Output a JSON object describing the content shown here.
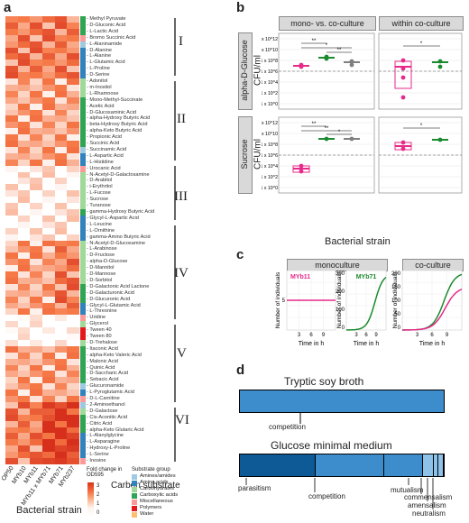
{
  "panel_a": {
    "label": "a",
    "columns": [
      "OP50",
      "MYb10",
      "MYb11",
      "MYb11 x MYb71",
      "MYb71",
      "MYb237"
    ],
    "xlabel": "Bacterial strain",
    "ylabel": "Carbon substrate",
    "clusters": [
      "I",
      "II",
      "III",
      "IV",
      "V",
      "VI"
    ],
    "rows": [
      {
        "name": "Methyl Pyruvate",
        "group": "Carboxylic acids"
      },
      {
        "name": "D-Gluconic Acid",
        "group": "Carboxylic acids"
      },
      {
        "name": "L-Lactic Acid",
        "group": "Carboxylic acids"
      },
      {
        "name": "Bromo Succinic Acid",
        "group": "Miscellaneous"
      },
      {
        "name": "L-Alaninamide",
        "group": "Amines/amides"
      },
      {
        "name": "D-Alanine",
        "group": "Amino acids"
      },
      {
        "name": "L-Alanine",
        "group": "Amino acids"
      },
      {
        "name": "L-Glutamic Acid",
        "group": "Amino acids"
      },
      {
        "name": "L-Proline",
        "group": "Amino acids"
      },
      {
        "name": "D-Serine",
        "group": "Amino acids"
      },
      {
        "name": "Adonitol",
        "group": "Carbohydrates"
      },
      {
        "name": "m-Inositol",
        "group": "Carbohydrates"
      },
      {
        "name": "L-Rhamnose",
        "group": "Carbohydrates"
      },
      {
        "name": "Mono-Methyl-Succinate",
        "group": "Carboxylic acids"
      },
      {
        "name": "Acetic Acid",
        "group": "Carboxylic acids"
      },
      {
        "name": "D-Glucosaminic Acid",
        "group": "Carboxylic acids"
      },
      {
        "name": "alpha-Hydroxy Butyric Acid",
        "group": "Carboxylic acids"
      },
      {
        "name": "beta-Hydroxy Butyric Acid",
        "group": "Carboxylic acids"
      },
      {
        "name": "alpha-Keto Butyric Acid",
        "group": "Carboxylic acids"
      },
      {
        "name": "Propionic Acid",
        "group": "Carboxylic acids"
      },
      {
        "name": "Succinic Acid",
        "group": "Carboxylic acids"
      },
      {
        "name": "Succinamic Acid",
        "group": "Amines/amides"
      },
      {
        "name": "L-Aspartic Acid",
        "group": "Amino acids"
      },
      {
        "name": "L-Histidine",
        "group": "Amino acids"
      },
      {
        "name": "Urocanic Acid",
        "group": "Miscellaneous"
      },
      {
        "name": "N-Acetyl-D-Galactosamine",
        "group": "Carbohydrates"
      },
      {
        "name": "D-Arabitol",
        "group": "Carbohydrates"
      },
      {
        "name": "i-Erythritol",
        "group": "Carbohydrates"
      },
      {
        "name": "L-Fucose",
        "group": "Carbohydrates"
      },
      {
        "name": "Sucrose",
        "group": "Carbohydrates"
      },
      {
        "name": "Turanose",
        "group": "Carbohydrates"
      },
      {
        "name": "gamma-Hydroxy Butyric Acid",
        "group": "Carboxylic acids"
      },
      {
        "name": "Glycyl-L-Aspartic Acid",
        "group": "Amino acids"
      },
      {
        "name": "L-Leucine",
        "group": "Amino acids"
      },
      {
        "name": "L-Ornithine",
        "group": "Amino acids"
      },
      {
        "name": "gamma-Amino Butyric Acid",
        "group": "Amino acids"
      },
      {
        "name": "N-Acetyl-D-Glucosamine",
        "group": "Carbohydrates"
      },
      {
        "name": "L-Arabinose",
        "group": "Carbohydrates"
      },
      {
        "name": "D-Fructose",
        "group": "Carbohydrates"
      },
      {
        "name": "alpha-D-Glucose",
        "group": "Carbohydrates"
      },
      {
        "name": "D-Mannitol",
        "group": "Carbohydrates"
      },
      {
        "name": "D-Mannose",
        "group": "Carbohydrates"
      },
      {
        "name": "D-Sorbitol",
        "group": "Carbohydrates"
      },
      {
        "name": "D-Galactonic Acid Lactone",
        "group": "Carboxylic acids"
      },
      {
        "name": "D-Galacturonic Acid",
        "group": "Carboxylic acids"
      },
      {
        "name": "D-Glucuronic Acid",
        "group": "Carboxylic acids"
      },
      {
        "name": "Glycyl-L-Glutamic Acid",
        "group": "Amino acids"
      },
      {
        "name": "L-Threonine",
        "group": "Amino acids"
      },
      {
        "name": "Uridine",
        "group": "Miscellaneous"
      },
      {
        "name": "Glycerol",
        "group": "Carbohydrates"
      },
      {
        "name": "Tween 40",
        "group": "Polymers"
      },
      {
        "name": "Tween 80",
        "group": "Polymers"
      },
      {
        "name": "D-Trehalose",
        "group": "Carbohydrates"
      },
      {
        "name": "Itaconic Acid",
        "group": "Carboxylic acids"
      },
      {
        "name": "alpha-Keto Valeric Acid",
        "group": "Carboxylic acids"
      },
      {
        "name": "Malonic Acid",
        "group": "Carboxylic acids"
      },
      {
        "name": "Quinic Acid",
        "group": "Carboxylic acids"
      },
      {
        "name": "D-Saccharic Acid",
        "group": "Carboxylic acids"
      },
      {
        "name": "Sebacic Acid",
        "group": "Carboxylic acids"
      },
      {
        "name": "Glucuronamide",
        "group": "Amines/amides"
      },
      {
        "name": "L-Pyroglutamic Acid",
        "group": "Amino acids"
      },
      {
        "name": "D-L-Carnitine",
        "group": "Miscellaneous"
      },
      {
        "name": "2-Aminoethanol",
        "group": "Amines/amides"
      },
      {
        "name": "D-Galactose",
        "group": "Carbohydrates"
      },
      {
        "name": "Cis-Aconitic Acid",
        "group": "Carboxylic acids"
      },
      {
        "name": "Citric Acid",
        "group": "Carboxylic acids"
      },
      {
        "name": "alpha-Keto Glutaric Acid",
        "group": "Carboxylic acids"
      },
      {
        "name": "L-Alanylglycine",
        "group": "Amino acids"
      },
      {
        "name": "L-Asparagine",
        "group": "Amino acids"
      },
      {
        "name": "Hydroxy-L-Proline",
        "group": "Amino acids"
      },
      {
        "name": "L-Serine",
        "group": "Amino acids"
      },
      {
        "name": "Inosine",
        "group": "Miscellaneous"
      }
    ],
    "fold_change_legend": {
      "title": "Fold change in OD595",
      "ticks": [
        "3",
        "2",
        "1",
        "0"
      ]
    },
    "group_legend": {
      "title": "Substrate group",
      "items": [
        {
          "name": "Amines/amides",
          "color": "#9ecae1"
        },
        {
          "name": "Amino acids",
          "color": "#3182bd"
        },
        {
          "name": "Carbohydrates",
          "color": "#a1d99b"
        },
        {
          "name": "Carboxylic acids",
          "color": "#31a354"
        },
        {
          "name": "Miscellaneous",
          "color": "#fb9a99"
        },
        {
          "name": "Polymers",
          "color": "#e31a1c"
        },
        {
          "name": "Water",
          "color": "#fdbf6f"
        }
      ]
    }
  },
  "panel_b": {
    "label": "b",
    "col_headers": [
      "mono- vs. co-culture",
      "within co-culture"
    ],
    "row_headers": [
      "alpha-D-Glucose",
      "Sucrose"
    ],
    "ylabel": "CFU/ml",
    "yticks": [
      "1 x 10^12",
      "1 x 10^10",
      "1 x 10^8",
      "1 x 10^6",
      "1 x 10^4",
      "1 x 10^2",
      "1 x 10^0"
    ],
    "x_left": [
      "MYb11",
      "MYb71",
      "co-culture"
    ],
    "x_right": [
      "MYb11",
      "MYb71"
    ],
    "xlabel": "Bacterial strain",
    "sig_marks": [
      "**",
      "*",
      "**",
      "*",
      "**",
      "**",
      "*",
      "*"
    ]
  },
  "panel_c": {
    "label": "c",
    "col_headers": [
      "monoculture",
      "co-culture"
    ],
    "series_labels": [
      "MYb11",
      "MYb71"
    ],
    "ylabel": "Number of individuals",
    "xlabel": "Time in h",
    "xticks": [
      "3",
      "6",
      "9"
    ],
    "yticks_left": [
      "5"
    ],
    "yticks_right": [
      "300",
      "200",
      "100",
      "0"
    ],
    "yticks_co": [
      "200",
      "150",
      "100",
      "50",
      "0"
    ]
  },
  "panel_d": {
    "label": "d",
    "title1": "Tryptic soy broth",
    "title2": "Glucose minimal medium",
    "labels1": [
      "competition"
    ],
    "labels2": [
      "parasitism",
      "competition",
      "mutualism",
      "commensalism",
      "amensalism",
      "neutralism"
    ],
    "bar1_fractions": [
      1.0
    ],
    "bar2_fractions": [
      0.37,
      0.34,
      0.19,
      0.05,
      0.025,
      0.025
    ]
  },
  "colors": {
    "myb11": "#e7298a",
    "myb71": "#1b8a2e",
    "coculture": "#7f7f7f",
    "bar_dark": "#0d5a96",
    "bar_mid": "#3d8ccb",
    "bar_light": "#8dc3e8"
  }
}
